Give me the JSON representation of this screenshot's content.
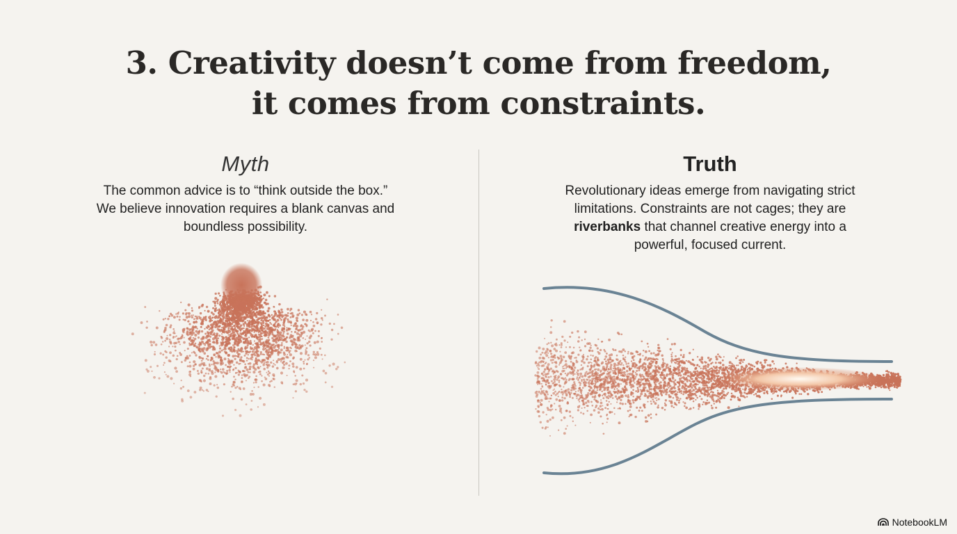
{
  "slide": {
    "title_line1": "3. Creativity doesn’t come from freedom,",
    "title_line2": "it comes from constraints."
  },
  "myth": {
    "heading": "Myth",
    "lines": [
      "The common advice is to “think outside the box.”",
      "We believe innovation requires a blank canvas and",
      "boundless possibility."
    ]
  },
  "truth": {
    "heading": "Truth",
    "line1": "Revolutionary ideas emerge from navigating strict",
    "line2": "limitations. Constraints are not cages; they are",
    "line3_bold": "riverbanks",
    "line3_rest": " that channel creative energy into a",
    "line4": "powerful, focused current."
  },
  "branding": {
    "label": "NotebookLM"
  },
  "colors": {
    "background": "#f5f3ef",
    "particle": "#c8735a",
    "riverbank": "#6a8394"
  }
}
